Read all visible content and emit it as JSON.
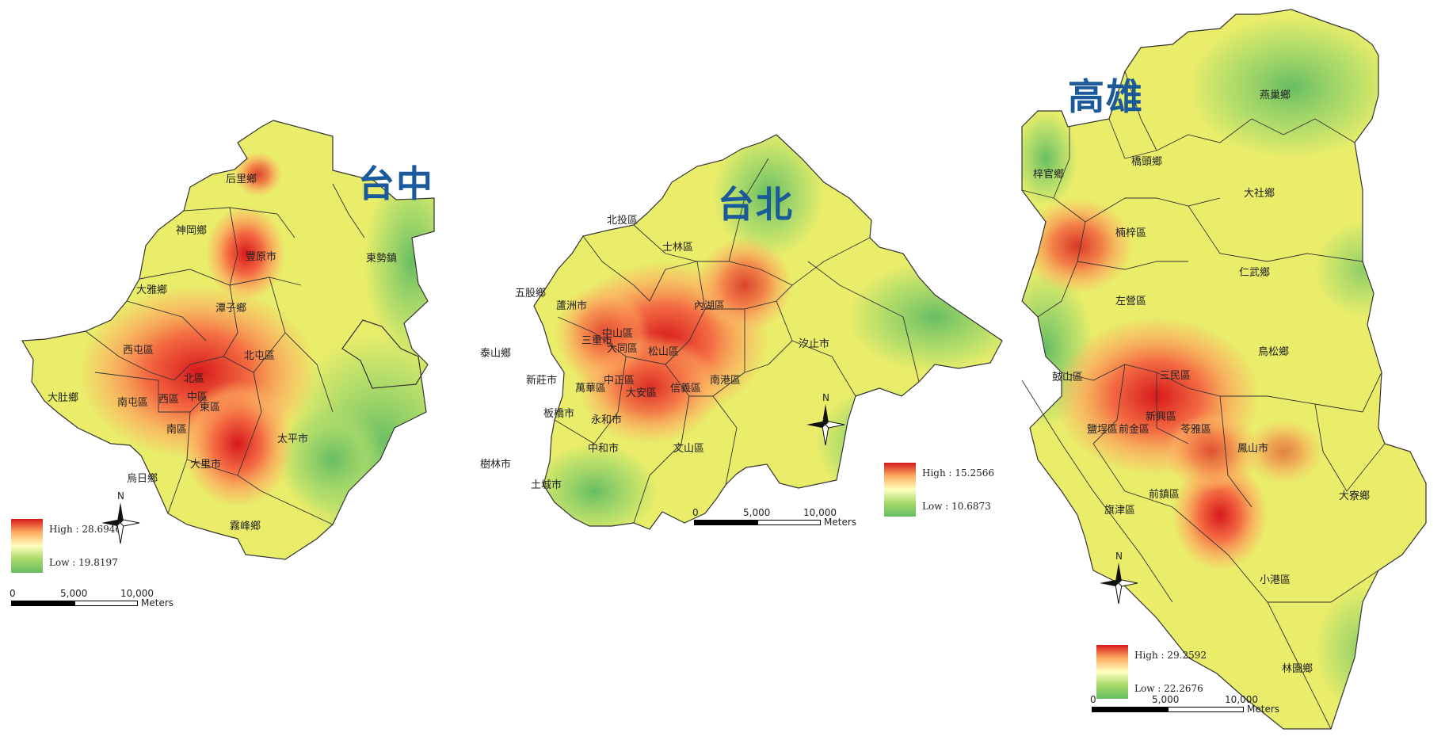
{
  "colors": {
    "title": "#1a5a9a",
    "high": "#d7191c",
    "mid": "#ffffbf",
    "low": "#66bd63",
    "boundary": "#333333"
  },
  "panels": [
    {
      "id": "taichung",
      "title": "台中",
      "legend": {
        "high": "High : 28.6946",
        "low": "Low : 19.8197"
      },
      "scale": {
        "t0": "0",
        "t1": "5,000",
        "t2": "10,000",
        "unit": "Meters"
      },
      "north": "N",
      "districts": [
        "后里鄉",
        "神岡鄉",
        "豐原市",
        "東勢鎮",
        "大雅鄉",
        "潭子鄉",
        "西屯區",
        "北屯區",
        "北區",
        "西區",
        "中區",
        "東區",
        "大肚鄉",
        "南屯區",
        "南區",
        "太平市",
        "大里市",
        "烏日鄉",
        "霧峰鄉"
      ]
    },
    {
      "id": "taipei",
      "title": "台北",
      "legend": {
        "high": "High : 15.2566",
        "low": "Low : 10.6873"
      },
      "scale": {
        "t0": "0",
        "t1": "5,000",
        "t2": "10,000",
        "unit": "Meters"
      },
      "north": "N",
      "districts": [
        "北投區",
        "士林區",
        "五股鄉",
        "蘆洲市",
        "內湖區",
        "中山區",
        "三重市",
        "大同區",
        "松山區",
        "汐止市",
        "泰山鄉",
        "新莊市",
        "中正區",
        "萬華區",
        "大安區",
        "信義區",
        "南港區",
        "板橋市",
        "永和市",
        "中和市",
        "文山區",
        "樹林市",
        "土城市"
      ]
    },
    {
      "id": "kaohsiung",
      "title": "高雄",
      "legend": {
        "high": "High : 29.2592",
        "low": "Low : 22.2676"
      },
      "scale": {
        "t0": "0",
        "t1": "5,000",
        "t2": "10,000",
        "unit": "Meters"
      },
      "north": "N",
      "districts": [
        "燕巢鄉",
        "梓官鄉",
        "橋頭鄉",
        "大社鄉",
        "楠梓區",
        "仁武鄉",
        "左營區",
        "鳥松鄉",
        "三民區",
        "鼓山區",
        "新興區",
        "苓雅區",
        "鹽埕區",
        "前金區",
        "鳳山市",
        "大寮鄉",
        "前鎮區",
        "旗津區",
        "小港區",
        "林園鄉"
      ]
    }
  ]
}
